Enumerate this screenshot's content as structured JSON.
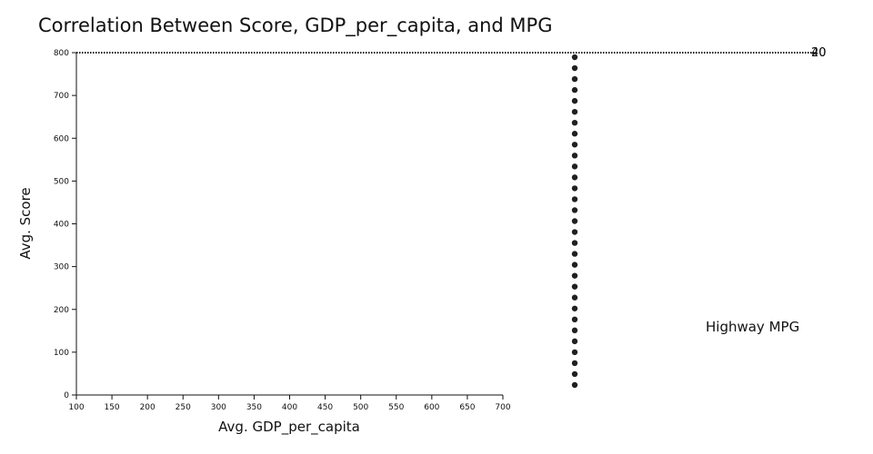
{
  "chart": {
    "title": "Correlation Between Score, GDP_per_capita, and MPG"
  },
  "chart_data": {
    "type": "scatter",
    "title": "Correlation Between Score, GDP_per_capita, and MPG",
    "xlabel": "Avg. GDP_per_capita",
    "ylabel": "Avg. Score",
    "xlim": [
      100,
      700
    ],
    "ylim": [
      0,
      800
    ],
    "x_ticks": [
      100,
      150,
      200,
      250,
      300,
      350,
      400,
      450,
      500,
      550,
      600,
      650,
      700
    ],
    "y_ticks": [
      0,
      100,
      200,
      300,
      400,
      500,
      600,
      700,
      800
    ],
    "legend_title": "Highway MPG",
    "size_legend_labels": [
      "20",
      "40"
    ],
    "legend_position": "right",
    "grid": false,
    "point_color": "#231f20",
    "points": [
      {
        "y": 25
      },
      {
        "y": 50
      },
      {
        "y": 75
      },
      {
        "y": 100
      },
      {
        "y": 125
      },
      {
        "y": 150
      },
      {
        "y": 175
      },
      {
        "y": 200
      },
      {
        "y": 225
      },
      {
        "y": 250
      },
      {
        "y": 275
      },
      {
        "y": 300
      },
      {
        "y": 325
      },
      {
        "y": 350
      },
      {
        "y": 375
      },
      {
        "y": 400
      },
      {
        "y": 425
      },
      {
        "y": 450
      },
      {
        "y": 475
      },
      {
        "y": 500
      },
      {
        "y": 525
      },
      {
        "y": 550
      },
      {
        "y": 575
      },
      {
        "y": 600
      },
      {
        "y": 625
      },
      {
        "y": 650
      },
      {
        "y": 675
      },
      {
        "y": 700
      },
      {
        "y": 725
      },
      {
        "y": 750
      },
      {
        "y": 775
      }
    ]
  }
}
